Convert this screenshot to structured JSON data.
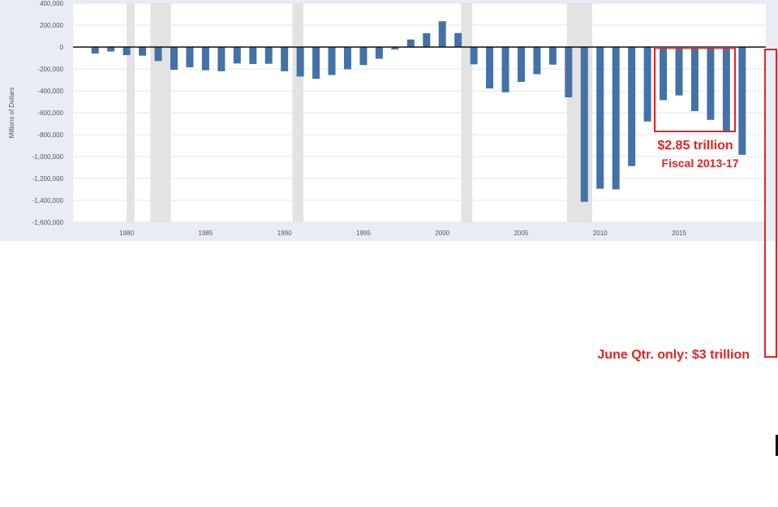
{
  "chart_data": {
    "type": "bar",
    "ylabel": "Millions of Dollars",
    "ylim": [
      -1600000,
      400000
    ],
    "yticks": [
      400000,
      200000,
      0,
      -200000,
      -400000,
      -600000,
      -800000,
      -1000000,
      -1200000,
      -1400000,
      -1600000
    ],
    "ytick_labels": [
      "400,000",
      "200,000",
      "0",
      "-200,000",
      "-400,000",
      "-600,000",
      "-800,000",
      "-1,000,000",
      "-1,200,000",
      "-1,400,000",
      "-1,600,000"
    ],
    "xlim": [
      1976.6,
      2020.5
    ],
    "xticks": [
      1980,
      1985,
      1990,
      1995,
      2000,
      2005,
      2010,
      2015
    ],
    "xtick_labels": [
      "1980",
      "1985",
      "1990",
      "1995",
      "2000",
      "2005",
      "2010",
      "2015"
    ],
    "grid": true,
    "bar_color": "#4472a8",
    "recession_color": "#e3e3e3",
    "recessions": [
      [
        1980.0,
        1980.5
      ],
      [
        1981.5,
        1982.8
      ],
      [
        1990.5,
        1991.2
      ],
      [
        2001.2,
        2001.9
      ],
      [
        2007.9,
        2009.5
      ]
    ],
    "x": [
      1978,
      1979,
      1980,
      1981,
      1982,
      1983,
      1984,
      1985,
      1986,
      1987,
      1988,
      1989,
      1990,
      1991,
      1992,
      1993,
      1994,
      1995,
      1996,
      1997,
      1998,
      1999,
      2000,
      2001,
      2002,
      2003,
      2004,
      2005,
      2006,
      2007,
      2008,
      2009,
      2010,
      2011,
      2012,
      2013,
      2014,
      2015,
      2016,
      2017,
      2018,
      2019
    ],
    "values": [
      -59000,
      -41000,
      -74000,
      -79000,
      -128000,
      -208000,
      -185000,
      -212000,
      -221000,
      -150000,
      -155000,
      -153000,
      -221000,
      -269000,
      -290000,
      -255000,
      -203000,
      -164000,
      -107000,
      -22000,
      69000,
      126000,
      236000,
      128000,
      -158000,
      -378000,
      -413000,
      -318000,
      -248000,
      -161000,
      -459000,
      -1413000,
      -1294000,
      -1300000,
      -1087000,
      -680000,
      -485000,
      -442000,
      -585000,
      -665000,
      -779000,
      -984000
    ],
    "annotations": [
      {
        "text": "$2.85 trillion",
        "subtext": "Fiscal 2013-17",
        "x_range": [
          2013,
          2017
        ]
      },
      {
        "text": "June Qtr. only: $3 trillion"
      }
    ]
  }
}
